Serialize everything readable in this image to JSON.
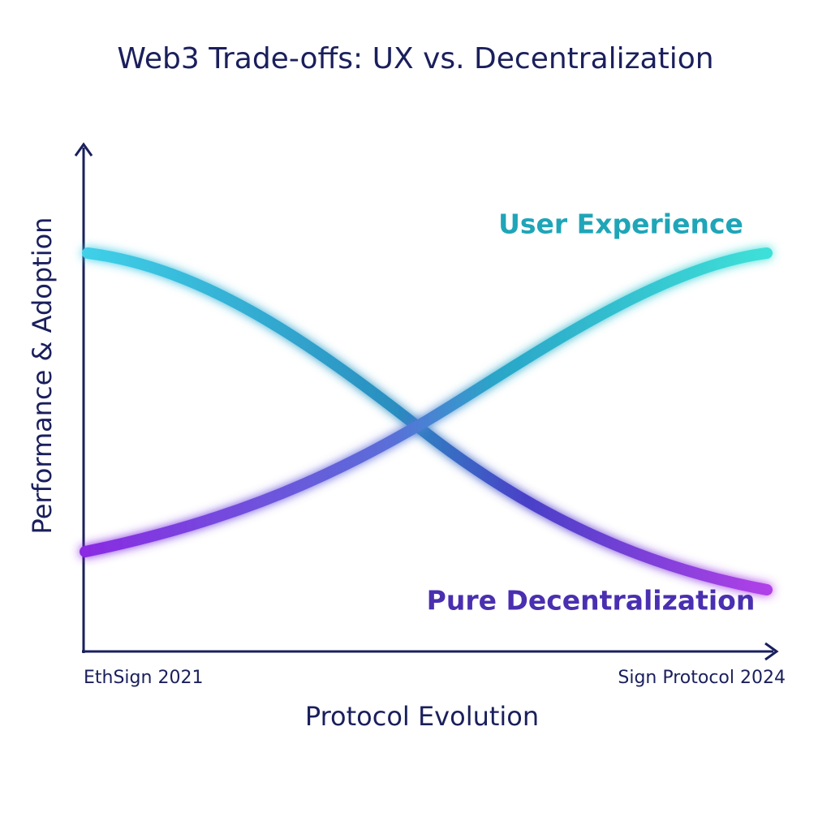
{
  "title": "Web3 Trade-offs: UX vs. Decentralization",
  "y_axis": {
    "label": "Performance & Adoption"
  },
  "x_axis": {
    "label": "Protocol Evolution",
    "start_label": "EthSign 2021",
    "end_label": "Sign Protocol 2024"
  },
  "curves": [
    {
      "label": "User Experience"
    },
    {
      "label": "Pure Decentralization"
    }
  ]
}
